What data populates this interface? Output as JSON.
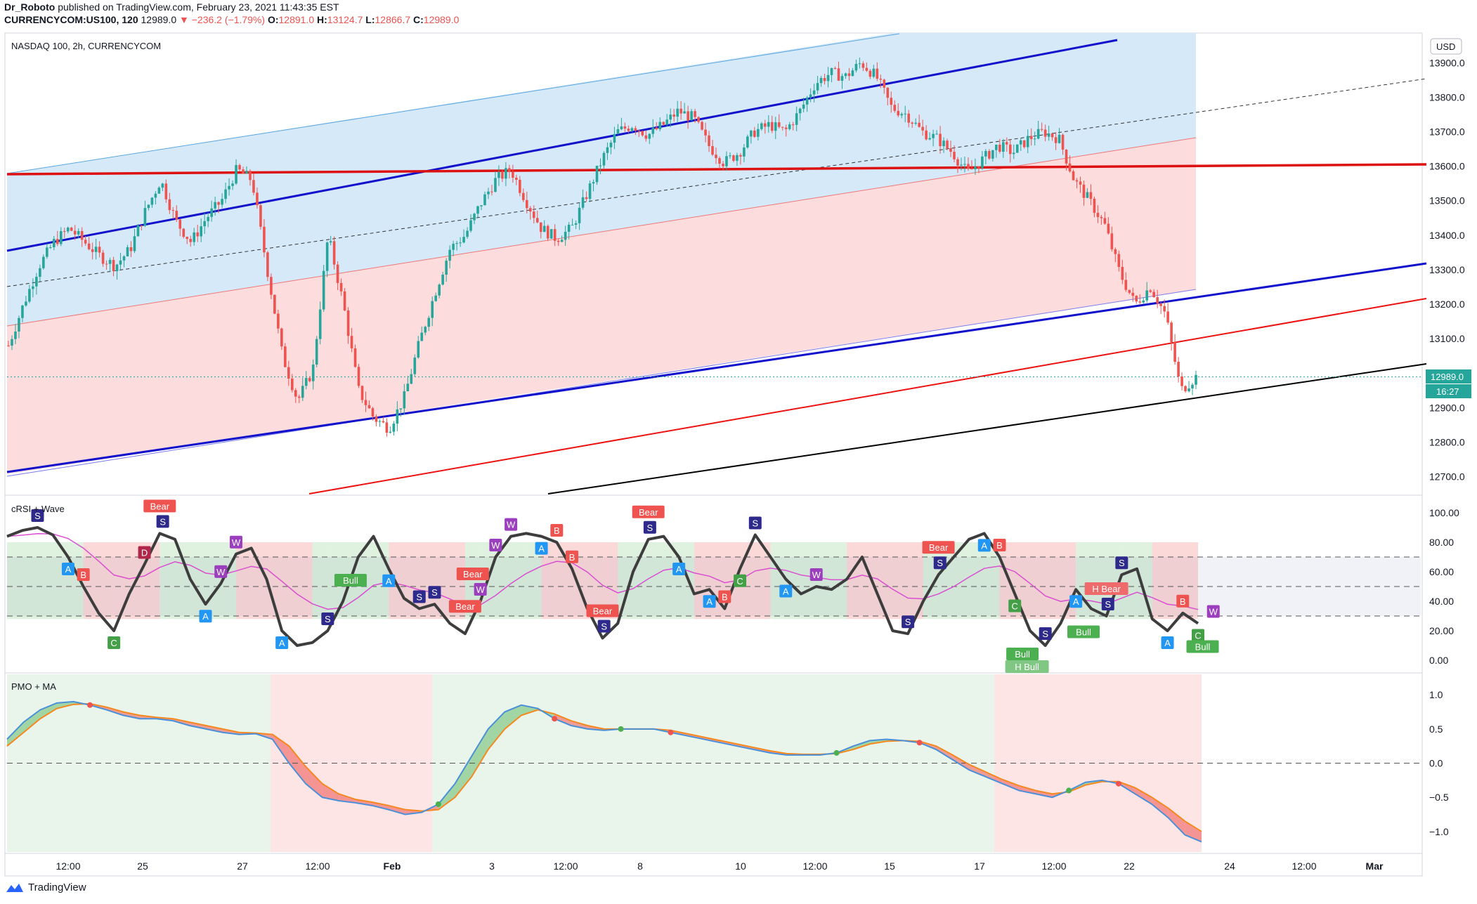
{
  "header": {
    "author": "Dr_Roboto",
    "published_text": "published on TradingView.com, February 23, 2021 11:43:35 EST",
    "symbol": "CURRENCYCOM:US100, 120",
    "last": "12989.0",
    "change": "−236.2 (−1.79%)",
    "o_label": "O:",
    "o": "12891.0",
    "h_label": "H:",
    "h": "13124.7",
    "l_label": "L:",
    "l": "12866.7",
    "c_label": "C:",
    "c": "12989.0",
    "title": "NASDAQ 100, 2h, CURRENCYCOM",
    "currency": "USD",
    "price_tag": "12989.0",
    "countdown": "16:27"
  },
  "colors": {
    "up": "#26a69a",
    "down": "#ef5350",
    "channel_blue": "#1111cc",
    "channel_red": "#ee1111",
    "upper_fill": "#d6e9f8",
    "lower_fill": "#fcdcdc",
    "rsi_line": "#3d3d3d",
    "pmo_blue": "#4a90d9",
    "pmo_orange": "#f5891f"
  },
  "chart_data": [
    {
      "type": "candlestick",
      "title": "NASDAQ 100, 2h, CURRENCYCOM",
      "ylim": [
        12650,
        13980
      ],
      "y_ticks": [
        12700,
        12800,
        12900,
        13000,
        13100,
        13200,
        13300,
        13400,
        13500,
        13600,
        13700,
        13800,
        13900
      ],
      "y_tick_labels": [
        "12700.0",
        "12800.0",
        "12900.0",
        "13000.0",
        "13100.0",
        "13200.0",
        "13300.0",
        "13400.0",
        "13500.0",
        "13600.0",
        "13700.0",
        "13800.0",
        "13900.0"
      ],
      "x_tick_labels": [
        "12:00",
        "25",
        "27",
        "12:00",
        "Feb",
        "3",
        "12:00",
        "8",
        "10",
        "12:00",
        "15",
        "17",
        "12:00",
        "22",
        "24",
        "12:00",
        "Mar"
      ],
      "close_path": [
        13080,
        13200,
        13310,
        13380,
        13420,
        13380,
        13340,
        13310,
        13360,
        13470,
        13560,
        13440,
        13380,
        13450,
        13500,
        13590,
        13560,
        13300,
        13050,
        12920,
        13010,
        13400,
        13200,
        12950,
        12870,
        12840,
        12930,
        13090,
        13230,
        13360,
        13400,
        13490,
        13560,
        13590,
        13500,
        13420,
        13390,
        13420,
        13520,
        13620,
        13700,
        13720,
        13690,
        13720,
        13760,
        13740,
        13660,
        13610,
        13640,
        13700,
        13720,
        13700,
        13760,
        13840,
        13870,
        13860,
        13900,
        13860,
        13770,
        13750,
        13700,
        13680,
        13640,
        13580,
        13620,
        13660,
        13640,
        13680,
        13700,
        13680,
        13560,
        13500,
        13430,
        13290,
        13200,
        13250,
        13170,
        12950,
        12989
      ],
      "last_price": 12989.0
    },
    {
      "type": "line",
      "title": "cRSI + Wave",
      "ylim": [
        0,
        100
      ],
      "y_ticks": [
        0,
        20,
        40,
        60,
        80,
        100
      ],
      "y_tick_labels": [
        "0.00",
        "20.00",
        "40.00",
        "60.00",
        "80.00",
        "100.00"
      ],
      "levels": [
        30,
        50,
        70
      ],
      "rsi": [
        84,
        88,
        90,
        85,
        70,
        50,
        32,
        20,
        45,
        65,
        86,
        82,
        55,
        38,
        52,
        72,
        76,
        55,
        20,
        10,
        12,
        20,
        40,
        70,
        84,
        62,
        42,
        35,
        38,
        25,
        18,
        40,
        70,
        84,
        86,
        84,
        80,
        62,
        35,
        15,
        25,
        60,
        82,
        84,
        70,
        45,
        48,
        35,
        62,
        85,
        70,
        55,
        45,
        50,
        48,
        55,
        70,
        45,
        20,
        18,
        40,
        58,
        70,
        82,
        86,
        70,
        45,
        20,
        10,
        25,
        48,
        35,
        30,
        58,
        62,
        28,
        20,
        32,
        25
      ],
      "signal_labels": [
        {
          "i": 2,
          "t": "S"
        },
        {
          "i": 4,
          "t": "A"
        },
        {
          "i": 5,
          "t": "B"
        },
        {
          "i": 7,
          "t": "C"
        },
        {
          "i": 9,
          "t": "D"
        },
        {
          "i": 10,
          "t": "Bear"
        },
        {
          "i": 10.2,
          "t": "S"
        },
        {
          "i": 13,
          "t": "A"
        },
        {
          "i": 14,
          "t": "W"
        },
        {
          "i": 15,
          "t": "W"
        },
        {
          "i": 18,
          "t": "A"
        },
        {
          "i": 21,
          "t": "S"
        },
        {
          "i": 22.5,
          "t": "Bull"
        },
        {
          "i": 25,
          "t": "A"
        },
        {
          "i": 27,
          "t": "S"
        },
        {
          "i": 28,
          "t": "S"
        },
        {
          "i": 30,
          "t": "Bear"
        },
        {
          "i": 30.5,
          "t": "Bear"
        },
        {
          "i": 31,
          "t": "W"
        },
        {
          "i": 32,
          "t": "W"
        },
        {
          "i": 33,
          "t": "W"
        },
        {
          "i": 35,
          "t": "A"
        },
        {
          "i": 36,
          "t": "B"
        },
        {
          "i": 37,
          "t": "B"
        },
        {
          "i": 39,
          "t": "Bear"
        },
        {
          "i": 39.1,
          "t": "S"
        },
        {
          "i": 42,
          "t": "Bear"
        },
        {
          "i": 42.1,
          "t": "S"
        },
        {
          "i": 44,
          "t": "A"
        },
        {
          "i": 46,
          "t": "A"
        },
        {
          "i": 47,
          "t": "B"
        },
        {
          "i": 48,
          "t": "C"
        },
        {
          "i": 49,
          "t": "S"
        },
        {
          "i": 51,
          "t": "A"
        },
        {
          "i": 53,
          "t": "W"
        },
        {
          "i": 59,
          "t": "S"
        },
        {
          "i": 61,
          "t": "Bear"
        },
        {
          "i": 61.1,
          "t": "S"
        },
        {
          "i": 64,
          "t": "A"
        },
        {
          "i": 65,
          "t": "B"
        },
        {
          "i": 66,
          "t": "C"
        },
        {
          "i": 66.5,
          "t": "Bull"
        },
        {
          "i": 66.8,
          "t": "H Bull"
        },
        {
          "i": 68,
          "t": "S"
        },
        {
          "i": 70,
          "t": "A"
        },
        {
          "i": 70.5,
          "t": "Bull"
        },
        {
          "i": 72,
          "t": "H Bear"
        },
        {
          "i": 72.1,
          "t": "S"
        },
        {
          "i": 73,
          "t": "S"
        },
        {
          "i": 76,
          "t": "A"
        },
        {
          "i": 77,
          "t": "B"
        },
        {
          "i": 78,
          "t": "C"
        },
        {
          "i": 78.3,
          "t": "Bull"
        },
        {
          "i": 79,
          "t": "W"
        }
      ]
    },
    {
      "type": "line",
      "title": "PMO + MA",
      "ylim": [
        -1.3,
        1.3
      ],
      "y_ticks": [
        -1.0,
        -0.5,
        0.0,
        0.5,
        1.0
      ],
      "y_tick_labels": [
        "−1.0",
        "−0.5",
        "0.0",
        "0.5",
        "1.0"
      ],
      "levels": [
        0
      ],
      "pmo": [
        0.35,
        0.6,
        0.78,
        0.88,
        0.9,
        0.85,
        0.78,
        0.7,
        0.65,
        0.65,
        0.62,
        0.55,
        0.5,
        0.45,
        0.42,
        0.43,
        0.35,
        0.0,
        -0.3,
        -0.5,
        -0.55,
        -0.58,
        -0.62,
        -0.68,
        -0.75,
        -0.72,
        -0.6,
        -0.3,
        0.1,
        0.5,
        0.75,
        0.85,
        0.8,
        0.65,
        0.55,
        0.5,
        0.48,
        0.5,
        0.5,
        0.5,
        0.45,
        0.4,
        0.35,
        0.3,
        0.25,
        0.2,
        0.15,
        0.12,
        0.12,
        0.12,
        0.15,
        0.25,
        0.33,
        0.35,
        0.33,
        0.3,
        0.2,
        0.05,
        -0.1,
        -0.2,
        -0.3,
        -0.4,
        -0.45,
        -0.5,
        -0.4,
        -0.28,
        -0.25,
        -0.3,
        -0.45,
        -0.6,
        -0.8,
        -1.05,
        -1.15
      ],
      "ma": [
        0.25,
        0.45,
        0.65,
        0.8,
        0.86,
        0.87,
        0.82,
        0.75,
        0.7,
        0.67,
        0.65,
        0.6,
        0.55,
        0.5,
        0.45,
        0.44,
        0.42,
        0.25,
        -0.05,
        -0.3,
        -0.45,
        -0.53,
        -0.57,
        -0.62,
        -0.68,
        -0.7,
        -0.68,
        -0.5,
        -0.2,
        0.2,
        0.5,
        0.7,
        0.78,
        0.72,
        0.62,
        0.55,
        0.5,
        0.5,
        0.5,
        0.5,
        0.48,
        0.43,
        0.38,
        0.33,
        0.28,
        0.23,
        0.18,
        0.14,
        0.13,
        0.13,
        0.14,
        0.2,
        0.28,
        0.32,
        0.33,
        0.32,
        0.25,
        0.12,
        -0.02,
        -0.13,
        -0.24,
        -0.33,
        -0.4,
        -0.45,
        -0.42,
        -0.32,
        -0.27,
        -0.27,
        -0.36,
        -0.5,
        -0.66,
        -0.85,
        -1.0
      ]
    }
  ]
}
